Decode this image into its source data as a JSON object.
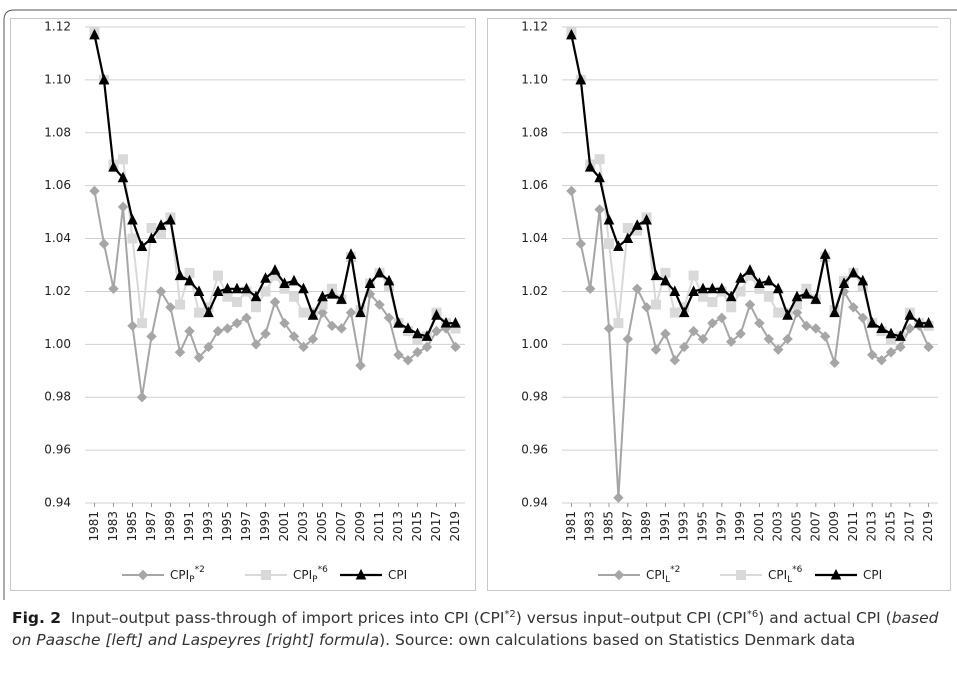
{
  "chart_data": [
    {
      "type": "line",
      "x": [
        1981,
        1982,
        1983,
        1984,
        1985,
        1986,
        1987,
        1988,
        1989,
        1990,
        1991,
        1992,
        1993,
        1994,
        1995,
        1996,
        1997,
        1998,
        1999,
        2000,
        2001,
        2002,
        2003,
        2004,
        2005,
        2006,
        2007,
        2008,
        2009,
        2010,
        2011,
        2012,
        2013,
        2014,
        2015,
        2016,
        2017,
        2018,
        2019
      ],
      "xlim": [
        1980,
        2020
      ],
      "xticks": [
        1981,
        1983,
        1985,
        1987,
        1989,
        1991,
        1993,
        1995,
        1997,
        1999,
        2001,
        2003,
        2005,
        2007,
        2009,
        2011,
        2013,
        2015,
        2017,
        2019
      ],
      "ylim": [
        0.94,
        1.12
      ],
      "yticks": [
        {
          "value": 0.94,
          "label": "0.94"
        },
        {
          "value": 0.96,
          "label": "0.96"
        },
        {
          "value": 0.98,
          "label": "0.98"
        },
        {
          "value": 1.0,
          "label": "1.00"
        },
        {
          "value": 1.02,
          "label": "1.02"
        },
        {
          "value": 1.04,
          "label": "1.04"
        },
        {
          "value": 1.06,
          "label": "1.06"
        },
        {
          "value": 1.08,
          "label": "1.08"
        },
        {
          "value": 1.1,
          "label": "1.10"
        },
        {
          "value": 1.12,
          "label": "1.12"
        }
      ],
      "grid": true,
      "series": [
        {
          "name": "CPI",
          "subscript": "P",
          "superscript": "*2",
          "color": "#a6a6a6",
          "marker": "diamond",
          "values": [
            1.058,
            1.038,
            1.021,
            1.052,
            1.007,
            0.98,
            1.003,
            1.02,
            1.014,
            0.997,
            1.005,
            0.995,
            0.999,
            1.005,
            1.006,
            1.008,
            1.01,
            1.0,
            1.004,
            1.016,
            1.008,
            1.003,
            0.999,
            1.002,
            1.012,
            1.007,
            1.006,
            1.012,
            0.992,
            1.019,
            1.015,
            1.01,
            0.996,
            0.994,
            0.997,
            0.999,
            1.005,
            1.006,
            0.999
          ]
        },
        {
          "name": "CPI",
          "subscript": "P",
          "superscript": "*6",
          "color": "#d9d9d9",
          "marker": "square",
          "values": [
            1.118,
            1.1,
            1.068,
            1.07,
            1.04,
            1.008,
            1.044,
            1.042,
            1.048,
            1.015,
            1.027,
            1.012,
            1.014,
            1.026,
            1.018,
            1.016,
            1.02,
            1.014,
            1.02,
            1.026,
            1.021,
            1.018,
            1.012,
            1.012,
            1.015,
            1.021,
            1.017,
            1.033,
            1.013,
            1.023,
            1.027,
            1.022,
            1.008,
            1.005,
            1.002,
            1.003,
            1.012,
            1.008,
            1.006
          ]
        },
        {
          "name": "CPI",
          "color": "#000000",
          "marker": "triangle",
          "values": [
            1.117,
            1.1,
            1.067,
            1.063,
            1.047,
            1.037,
            1.04,
            1.045,
            1.047,
            1.026,
            1.024,
            1.02,
            1.012,
            1.02,
            1.021,
            1.021,
            1.021,
            1.018,
            1.025,
            1.028,
            1.023,
            1.024,
            1.021,
            1.011,
            1.018,
            1.019,
            1.017,
            1.034,
            1.012,
            1.023,
            1.027,
            1.024,
            1.008,
            1.006,
            1.004,
            1.003,
            1.011,
            1.008,
            1.008
          ]
        }
      ]
    },
    {
      "type": "line",
      "x": [
        1981,
        1982,
        1983,
        1984,
        1985,
        1986,
        1987,
        1988,
        1989,
        1990,
        1991,
        1992,
        1993,
        1994,
        1995,
        1996,
        1997,
        1998,
        1999,
        2000,
        2001,
        2002,
        2003,
        2004,
        2005,
        2006,
        2007,
        2008,
        2009,
        2010,
        2011,
        2012,
        2013,
        2014,
        2015,
        2016,
        2017,
        2018,
        2019
      ],
      "xlim": [
        1980,
        2020
      ],
      "xticks": [
        1981,
        1983,
        1985,
        1987,
        1989,
        1991,
        1993,
        1995,
        1997,
        1999,
        2001,
        2003,
        2005,
        2007,
        2009,
        2011,
        2013,
        2015,
        2017,
        2019
      ],
      "ylim": [
        0.94,
        1.12
      ],
      "yticks": [
        {
          "value": 0.94,
          "label": "0.94"
        },
        {
          "value": 0.96,
          "label": "0.96"
        },
        {
          "value": 0.98,
          "label": "0.98"
        },
        {
          "value": 1.0,
          "label": "1.00"
        },
        {
          "value": 1.02,
          "label": "1.02"
        },
        {
          "value": 1.04,
          "label": "1.04"
        },
        {
          "value": 1.06,
          "label": "1.06"
        },
        {
          "value": 1.08,
          "label": "1.08"
        },
        {
          "value": 1.1,
          "label": "1.10"
        },
        {
          "value": 1.12,
          "label": "1.12"
        }
      ],
      "grid": true,
      "series": [
        {
          "name": "CPI",
          "subscript": "L",
          "superscript": "*2",
          "color": "#a6a6a6",
          "marker": "diamond",
          "values": [
            1.058,
            1.038,
            1.021,
            1.051,
            1.006,
            0.942,
            1.002,
            1.021,
            1.014,
            0.998,
            1.004,
            0.994,
            0.999,
            1.005,
            1.002,
            1.008,
            1.01,
            1.001,
            1.004,
            1.015,
            1.008,
            1.002,
            0.998,
            1.002,
            1.012,
            1.007,
            1.006,
            1.003,
            0.993,
            1.02,
            1.014,
            1.01,
            0.996,
            0.994,
            0.997,
            0.999,
            1.006,
            1.007,
            0.999
          ]
        },
        {
          "name": "CPI",
          "subscript": "L",
          "superscript": "*6",
          "color": "#d9d9d9",
          "marker": "square",
          "values": [
            1.118,
            1.1,
            1.068,
            1.07,
            1.038,
            1.008,
            1.044,
            1.043,
            1.048,
            1.015,
            1.027,
            1.012,
            1.014,
            1.026,
            1.018,
            1.016,
            1.02,
            1.014,
            1.02,
            1.026,
            1.021,
            1.018,
            1.012,
            1.012,
            1.015,
            1.021,
            1.017,
            1.033,
            1.013,
            1.024,
            1.027,
            1.022,
            1.008,
            1.005,
            1.002,
            1.003,
            1.012,
            1.008,
            1.007
          ]
        },
        {
          "name": "CPI",
          "color": "#000000",
          "marker": "triangle",
          "values": [
            1.117,
            1.1,
            1.067,
            1.063,
            1.047,
            1.037,
            1.04,
            1.045,
            1.047,
            1.026,
            1.024,
            1.02,
            1.012,
            1.02,
            1.021,
            1.021,
            1.021,
            1.018,
            1.025,
            1.028,
            1.023,
            1.024,
            1.021,
            1.011,
            1.018,
            1.019,
            1.017,
            1.034,
            1.012,
            1.023,
            1.027,
            1.024,
            1.008,
            1.006,
            1.004,
            1.003,
            1.011,
            1.008,
            1.008
          ]
        }
      ]
    }
  ],
  "caption": {
    "label": "Fig. 2",
    "runs": [
      {
        "text": "Input–output pass-through of import prices into CPI (CPI",
        "style": "normal"
      },
      {
        "text": "*2",
        "style": "sup"
      },
      {
        "text": ") versus input–output CPI (CPI",
        "style": "normal"
      },
      {
        "text": "*6",
        "style": "sup"
      },
      {
        "text": ") and actual CPI (",
        "style": "normal"
      },
      {
        "text": "based on Paasche [left] and Laspeyres [right] formula",
        "style": "italic"
      },
      {
        "text": "). Source: own calculations based on Statistics Denmark data",
        "style": "normal"
      }
    ]
  }
}
